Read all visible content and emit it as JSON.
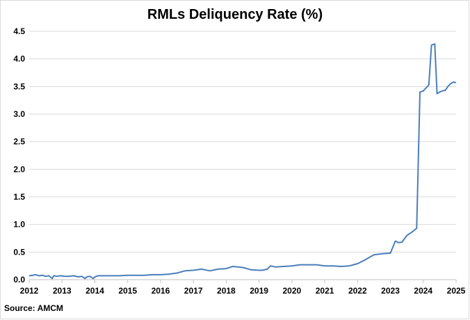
{
  "chart_data": {
    "type": "line",
    "title": "RMLs Deliquency Rate (%)",
    "xlabel": "",
    "ylabel": "",
    "xlim": [
      2012,
      2025
    ],
    "ylim": [
      0,
      4.5
    ],
    "y_ticks": [
      "0.0",
      "0.5",
      "1.0",
      "1.5",
      "2.0",
      "2.5",
      "3.0",
      "3.5",
      "4.0",
      "4.5"
    ],
    "x_ticks": [
      "2012",
      "2013",
      "2014",
      "2015",
      "2016",
      "2017",
      "2018",
      "2019",
      "2020",
      "2021",
      "2022",
      "2023",
      "2024",
      "2025"
    ],
    "grid": "horizontal",
    "line_color": "#4a7ebb",
    "series": [
      {
        "x": [
          2012.0,
          2012.1,
          2012.2,
          2012.3,
          2012.4,
          2012.5,
          2012.6,
          2012.7,
          2012.75,
          2012.85,
          2012.95,
          2013.1,
          2013.2,
          2013.35,
          2013.5,
          2013.6,
          2013.7,
          2013.75,
          2013.85,
          2013.95,
          2014.0,
          2014.1,
          2014.25,
          2014.5,
          2014.75,
          2015.0,
          2015.25,
          2015.5,
          2015.75,
          2016.0,
          2016.25,
          2016.5,
          2016.75,
          2017.0,
          2017.25,
          2017.5,
          2017.75,
          2018.0,
          2018.2,
          2018.5,
          2018.75,
          2019.0,
          2019.1,
          2019.25,
          2019.35,
          2019.5,
          2019.75,
          2020.0,
          2020.25,
          2020.5,
          2020.75,
          2021.0,
          2021.25,
          2021.5,
          2021.75,
          2022.0,
          2022.2,
          2022.5,
          2022.75,
          2023.0,
          2023.15,
          2023.25,
          2023.35,
          2023.5,
          2023.65,
          2023.8,
          2023.9,
          2024.0,
          2024.08,
          2024.17,
          2024.25,
          2024.35,
          2024.42,
          2024.5,
          2024.58,
          2024.67,
          2024.75,
          2024.83,
          2024.92,
          2025.0
        ],
        "values": [
          0.07,
          0.08,
          0.09,
          0.07,
          0.08,
          0.06,
          0.07,
          0.02,
          0.07,
          0.06,
          0.07,
          0.06,
          0.06,
          0.07,
          0.05,
          0.06,
          0.02,
          0.05,
          0.06,
          0.02,
          0.05,
          0.07,
          0.07,
          0.07,
          0.07,
          0.08,
          0.08,
          0.08,
          0.09,
          0.09,
          0.1,
          0.12,
          0.16,
          0.17,
          0.19,
          0.16,
          0.19,
          0.2,
          0.24,
          0.22,
          0.18,
          0.17,
          0.17,
          0.19,
          0.25,
          0.23,
          0.24,
          0.25,
          0.27,
          0.27,
          0.27,
          0.25,
          0.25,
          0.24,
          0.25,
          0.29,
          0.35,
          0.45,
          0.47,
          0.48,
          0.7,
          0.67,
          0.68,
          0.8,
          0.86,
          0.93,
          3.4,
          3.42,
          3.47,
          3.53,
          4.25,
          4.27,
          3.37,
          3.4,
          3.42,
          3.43,
          3.5,
          3.55,
          3.58,
          3.57
        ]
      }
    ]
  },
  "source": "Source: AMCM"
}
